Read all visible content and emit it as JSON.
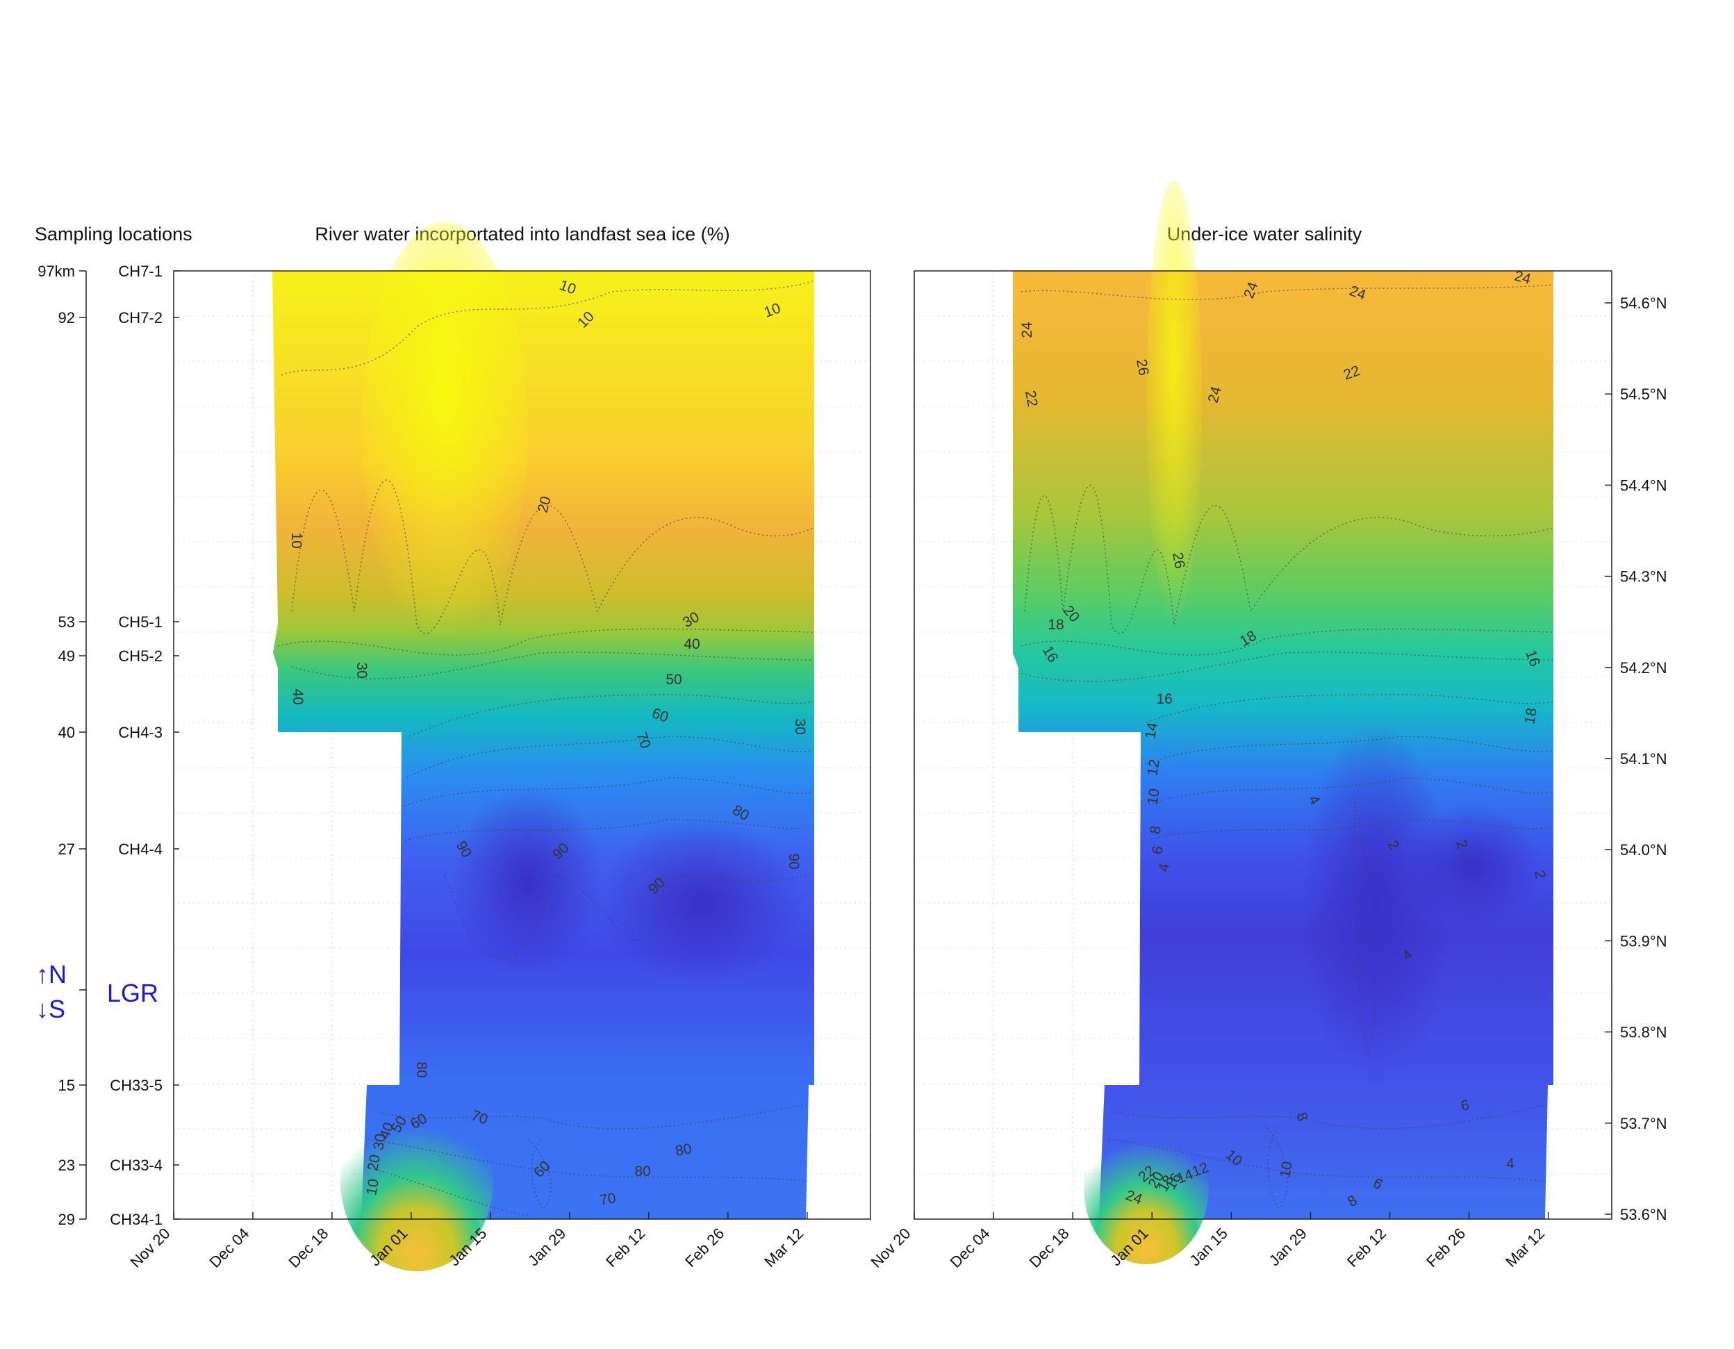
{
  "titles": {
    "sampling": "Sampling locations",
    "left": "River water incorportated into landfast sea ice (%)",
    "right": "Under-ice water salinity"
  },
  "chart_data": [
    {
      "type": "heatmap",
      "title": "River water incorportated into landfast sea ice (%)",
      "x_ticks": [
        "Nov 20",
        "Dec 04",
        "Dec 18",
        "Jan 01",
        "Jan 15",
        "Jan 29",
        "Feb 12",
        "Feb 26",
        "Mar 12"
      ],
      "y_ticks_km": [
        {
          "km": "97km",
          "station": "CH7-1"
        },
        {
          "km": "92",
          "station": "CH7-2"
        },
        {
          "km": "53",
          "station": "CH5-1"
        },
        {
          "km": "49",
          "station": "CH5-2"
        },
        {
          "km": "40",
          "station": "CH4-3"
        },
        {
          "km": "27",
          "station": "CH4-4"
        },
        {
          "km": "15",
          "station": "CH33-5"
        },
        {
          "km": "23",
          "station": "CH33-4"
        },
        {
          "km": "29",
          "station": "CH34-1"
        }
      ],
      "marker": {
        "north": "↑N",
        "south": "↓S",
        "label": "LGR"
      },
      "contour_levels": [
        10,
        20,
        30,
        40,
        50,
        60,
        70,
        80,
        90
      ],
      "grid": true
    },
    {
      "type": "heatmap",
      "title": "Under-ice water salinity",
      "x_ticks": [
        "Nov 20",
        "Dec 04",
        "Dec 18",
        "Jan 01",
        "Jan 15",
        "Jan 29",
        "Feb 12",
        "Feb 26",
        "Mar 12"
      ],
      "y_ticks_lat": [
        "54.6°N",
        "54.5°N",
        "54.4°N",
        "54.3°N",
        "54.2°N",
        "54.1°N",
        "54.0°N",
        "53.9°N",
        "53.8°N",
        "53.7°N",
        "53.6°N"
      ],
      "contour_levels": [
        2,
        4,
        6,
        8,
        10,
        12,
        14,
        16,
        18,
        20,
        22,
        24,
        26
      ],
      "grid": true
    }
  ],
  "left_contour_labels": [
    "10",
    "10",
    "10",
    "20",
    "10",
    "30",
    "40",
    "50",
    "60",
    "70",
    "80",
    "30",
    "40",
    "30",
    "90",
    "90",
    "90",
    "90",
    "80",
    "70",
    "80",
    "60",
    "80",
    "70",
    "10",
    "20",
    "30",
    "40",
    "50",
    "60"
  ],
  "right_contour_labels": [
    "24",
    "24",
    "24",
    "24",
    "26",
    "22",
    "22",
    "24",
    "26",
    "20",
    "18",
    "18",
    "16",
    "16",
    "18",
    "16",
    "14",
    "12",
    "10",
    "8",
    "6",
    "4",
    "4",
    "2",
    "2",
    "2",
    "4",
    "6",
    "8",
    "10",
    "10",
    "12",
    "14",
    "16",
    "18",
    "20",
    "22",
    "24",
    "8",
    "6",
    "4"
  ],
  "colors": {
    "low": "#f7f716",
    "mid": "#25c8a8",
    "high": "#3535d8",
    "marker": "#1a1adf"
  }
}
